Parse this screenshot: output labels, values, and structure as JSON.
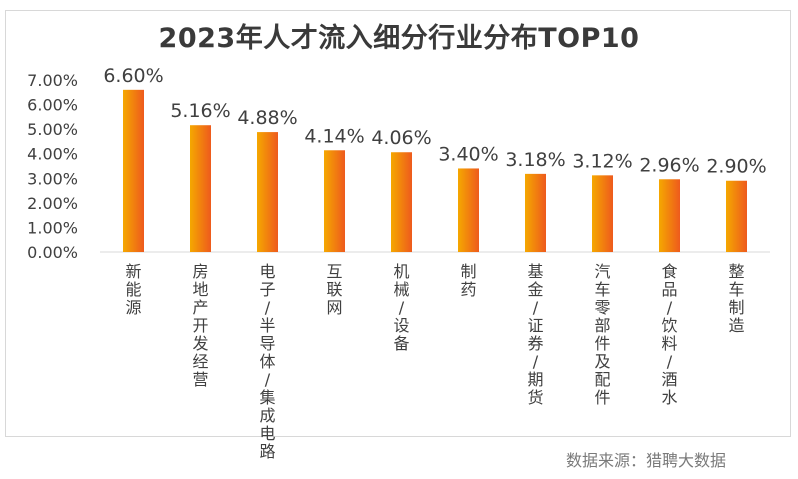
{
  "chart_data": {
    "type": "bar",
    "title": "2023年人才流入细分行业分布TOP10",
    "categories": [
      "新能源",
      "房地产开发经营",
      "电子/半导体/集成电路",
      "互联网",
      "机械/设备",
      "制药",
      "基金/证券/期货",
      "汽车零部件及配件",
      "食品/饮料/酒水",
      "整车制造"
    ],
    "values": [
      6.6,
      5.16,
      4.88,
      4.14,
      4.06,
      3.4,
      3.18,
      3.12,
      2.96,
      2.9
    ],
    "value_labels": [
      "6.60%",
      "5.16%",
      "4.88%",
      "4.14%",
      "4.06%",
      "3.40%",
      "3.18%",
      "3.12%",
      "2.96%",
      "2.90%"
    ],
    "y_ticks": [
      "0.00%",
      "1.00%",
      "2.00%",
      "3.00%",
      "4.00%",
      "5.00%",
      "6.00%",
      "7.00%"
    ],
    "ylim": [
      0,
      7
    ],
    "xlabel": "",
    "ylabel": "",
    "grid": false,
    "bar_color_start": "#f5a800",
    "bar_color_end": "#ee5a1d"
  },
  "source": "数据来源：猎聘大数据"
}
